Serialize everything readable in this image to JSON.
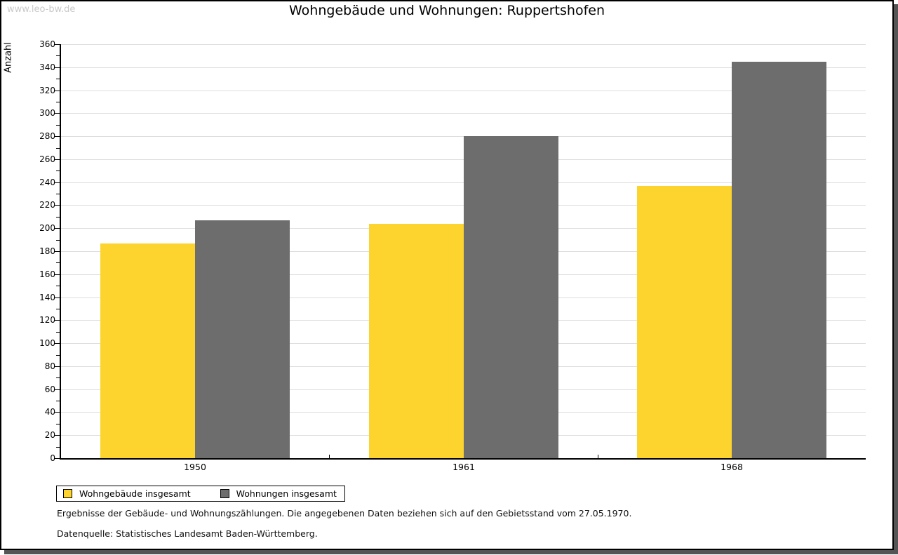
{
  "watermark": "www.leo-bw.de",
  "chart_data": {
    "type": "bar",
    "title": "Wohngebäude und Wohnungen: Ruppertshofen",
    "categories": [
      "1950",
      "1961",
      "1968"
    ],
    "series": [
      {
        "name": "Wohngebäude insgesamt",
        "color": "#FCD42D",
        "values": [
          187,
          204,
          237
        ]
      },
      {
        "name": "Wohnungen insgesamt",
        "color": "#6D6D6D",
        "values": [
          207,
          280,
          345
        ]
      }
    ],
    "xlabel": "",
    "ylabel": "Anzahl",
    "ylim": [
      0,
      360
    ],
    "ytick_major": 20,
    "ytick_minor": 10,
    "grid": true,
    "legend_position": "bottom-left"
  },
  "footer": {
    "line1": "Ergebnisse der Gebäude- und Wohnungszählungen. Die angegebenen Daten beziehen sich auf den Gebietsstand vom 27.05.1970.",
    "line2": "Datenquelle: Statistisches Landesamt Baden-Württemberg."
  },
  "colors": {
    "frame_border": "#000000",
    "frame_shadow": "#555555",
    "gridline": "#DDDDDD",
    "watermark": "#C9C9C9"
  }
}
